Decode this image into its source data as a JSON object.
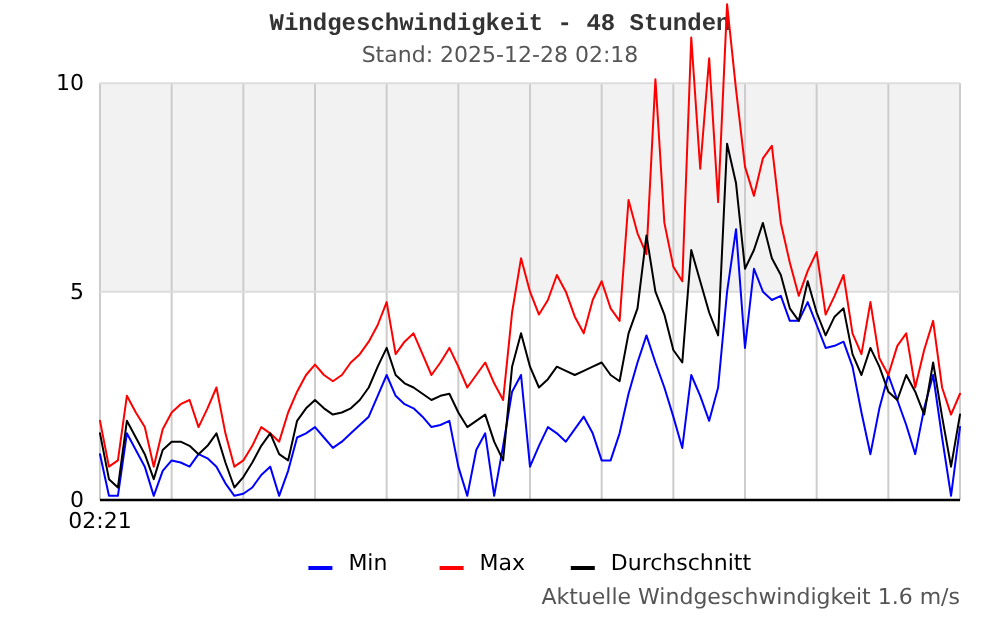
{
  "chart_data": {
    "type": "line",
    "title": "Windgeschwindigkeit - 48 Stunden",
    "subtitle": "Stand: 2025-12-28 02:18",
    "annotations": [
      "Aktuelle Windgeschwindigkeit 1.6 m/s"
    ],
    "categories": [
      "02:21",
      null,
      null,
      null,
      null,
      null,
      null,
      null,
      null,
      null,
      null,
      null,
      null,
      null,
      null,
      null,
      null,
      null,
      null,
      null,
      null,
      null,
      null,
      null,
      null,
      null,
      null,
      null,
      null,
      null,
      null,
      null,
      null,
      null,
      null,
      null,
      null,
      null,
      null,
      null,
      null,
      null,
      null,
      null,
      null,
      null,
      null,
      null,
      null,
      null,
      null,
      null,
      null,
      null,
      null,
      null,
      null,
      null,
      null,
      null,
      null,
      null,
      null,
      null,
      null,
      null,
      null,
      null,
      null,
      null,
      null,
      null,
      null,
      null,
      null,
      null,
      null,
      null,
      null,
      null,
      null,
      null,
      null,
      null,
      null,
      null,
      null,
      null,
      null,
      null,
      null,
      null,
      null,
      null,
      null,
      null,
      null
    ],
    "ylim": [
      0,
      12
    ],
    "yticks": [
      0,
      5,
      10
    ],
    "grid": true,
    "legend": "bottom",
    "marker": "none",
    "line_style": "solid",
    "bands": [
      {
        "axis": "y",
        "from": 5,
        "to": 10,
        "color": "#f2f2f2"
      }
    ],
    "series": [
      {
        "name": "Min",
        "color": "#0000ff",
        "values": [
          1.1,
          0.1,
          0.1,
          1.6,
          1.2,
          0.8,
          0.1,
          0.7,
          0.95,
          0.9,
          0.8,
          1.1,
          1.0,
          0.8,
          0.4,
          0.1,
          0.15,
          0.3,
          0.6,
          0.8,
          0.1,
          0.7,
          1.5,
          1.6,
          1.75,
          1.5,
          1.25,
          1.4,
          1.6,
          1.8,
          2.0,
          2.5,
          3.0,
          2.5,
          2.3,
          2.2,
          2.0,
          1.75,
          1.8,
          1.9,
          0.8,
          0.1,
          1.2,
          1.6,
          0.1,
          1.3,
          2.6,
          3.0,
          0.8,
          1.3,
          1.75,
          1.6,
          1.4,
          1.7,
          2.0,
          1.6,
          0.95,
          0.95,
          1.6,
          2.55,
          3.3,
          3.95,
          3.3,
          2.7,
          2.0,
          1.25,
          3.0,
          2.5,
          1.9,
          2.7,
          5.0,
          6.5,
          3.65,
          5.55,
          5.0,
          4.8,
          4.9,
          4.3,
          4.3,
          4.75,
          4.2,
          3.65,
          3.7,
          3.8,
          3.2,
          2.1,
          1.1,
          2.2,
          3.0,
          2.4,
          1.8,
          1.1,
          2.2,
          3.0,
          1.5,
          0.1,
          1.75
        ]
      },
      {
        "name": "Max",
        "color": "#ff0000",
        "values": [
          1.9,
          0.8,
          0.95,
          2.5,
          2.1,
          1.75,
          0.8,
          1.7,
          2.1,
          2.3,
          2.4,
          1.75,
          2.2,
          2.7,
          1.6,
          0.8,
          0.95,
          1.3,
          1.75,
          1.6,
          1.4,
          2.1,
          2.6,
          3.0,
          3.25,
          3.0,
          2.85,
          3.0,
          3.3,
          3.5,
          3.8,
          4.2,
          4.75,
          3.5,
          3.8,
          4.0,
          3.5,
          3.0,
          3.3,
          3.65,
          3.2,
          2.7,
          3.0,
          3.3,
          2.8,
          2.4,
          4.5,
          5.8,
          5.0,
          4.45,
          4.8,
          5.4,
          5.0,
          4.4,
          4.0,
          4.8,
          5.25,
          4.6,
          4.3,
          7.2,
          6.4,
          5.9,
          10.1,
          6.65,
          5.6,
          5.25,
          11.1,
          7.95,
          10.6,
          7.15,
          11.9,
          9.85,
          8.0,
          7.3,
          8.2,
          8.5,
          6.65,
          5.7,
          4.9,
          5.5,
          5.95,
          4.45,
          4.9,
          5.4,
          4.0,
          3.5,
          4.75,
          3.4,
          3.0,
          3.7,
          4.0,
          2.7,
          3.6,
          4.3,
          2.7,
          2.05,
          2.55
        ]
      },
      {
        "name": "Durchschnitt",
        "color": "#000000",
        "values": [
          1.6,
          0.5,
          0.3,
          1.9,
          1.5,
          1.1,
          0.5,
          1.2,
          1.4,
          1.4,
          1.3,
          1.1,
          1.3,
          1.6,
          0.9,
          0.3,
          0.55,
          0.9,
          1.3,
          1.6,
          1.1,
          0.95,
          1.9,
          2.2,
          2.4,
          2.2,
          2.05,
          2.1,
          2.2,
          2.4,
          2.7,
          3.2,
          3.65,
          3.0,
          2.8,
          2.7,
          2.55,
          2.4,
          2.5,
          2.55,
          2.1,
          1.75,
          1.9,
          2.05,
          1.4,
          0.95,
          3.2,
          4.0,
          3.2,
          2.7,
          2.9,
          3.2,
          3.1,
          3.0,
          3.1,
          3.2,
          3.3,
          3.0,
          2.85,
          4.0,
          4.6,
          6.35,
          5.0,
          4.45,
          3.6,
          3.3,
          6.0,
          5.25,
          4.5,
          3.95,
          8.55,
          7.6,
          5.55,
          6.0,
          6.65,
          5.8,
          5.4,
          4.6,
          4.3,
          5.25,
          4.5,
          3.95,
          4.4,
          4.6,
          3.5,
          3.0,
          3.65,
          3.2,
          2.6,
          2.4,
          3.0,
          2.6,
          2.05,
          3.3,
          2.0,
          0.8,
          2.05
        ]
      }
    ]
  }
}
